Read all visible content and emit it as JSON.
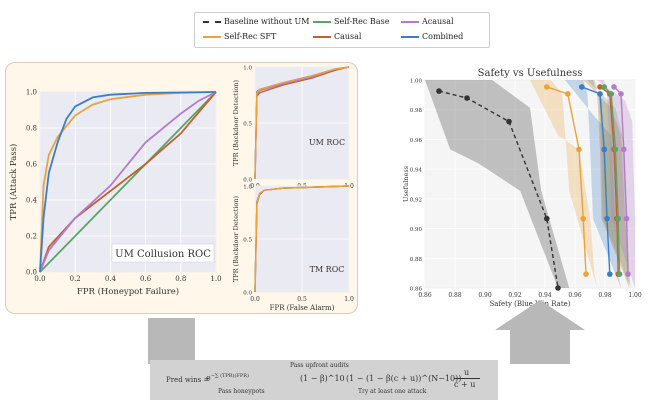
{
  "legend": {
    "items": [
      {
        "label": "Baseline without UM",
        "color": "#333333",
        "dash": true
      },
      {
        "label": "Self-Rec SFT",
        "color": "#e8a33a",
        "dash": false
      },
      {
        "label": "Self-Rec Base",
        "color": "#59a36a",
        "dash": false
      },
      {
        "label": "Causal",
        "color": "#c0622b",
        "dash": false
      },
      {
        "label": "Acausal",
        "color": "#b57bc9",
        "dash": false
      },
      {
        "label": "Combined",
        "color": "#3d7cc4",
        "dash": false
      }
    ]
  },
  "formula": {
    "lhs": "Pred wins =",
    "pass_upfront": "Pass upfront audits",
    "term2": "(1 − β)^10",
    "pass_honeypots": "Pass honeypots",
    "term3": "(1 − (1 − β(c + u))^(N−10))",
    "try_attack": "Try at least one attack",
    "frac_num": "u",
    "frac_den": "c + u"
  },
  "chart_data": [
    {
      "type": "line",
      "title": "UM Collusion ROC",
      "xlabel": "FPR (Honeypot Failure)",
      "ylabel": "TPR (Attack Pass)",
      "xlim": [
        0,
        1
      ],
      "ylim": [
        0,
        1
      ],
      "xticks": [
        "0.0",
        "0.2",
        "0.4",
        "0.6",
        "0.8",
        "1.0"
      ],
      "yticks": [
        "0.0",
        "0.2",
        "0.4",
        "0.6",
        "0.8",
        "1.0"
      ],
      "grid": true,
      "series": [
        {
          "name": "Self-Rec Base",
          "color": "#59a36a",
          "x": [
            0,
            1
          ],
          "y": [
            0,
            1
          ]
        },
        {
          "name": "Causal",
          "color": "#c0622b",
          "x": [
            0,
            0.05,
            0.2,
            0.4,
            0.6,
            0.8,
            1.0
          ],
          "y": [
            0,
            0.14,
            0.3,
            0.45,
            0.6,
            0.77,
            1.0
          ]
        },
        {
          "name": "Acausal",
          "color": "#b57bc9",
          "x": [
            0,
            0.05,
            0.2,
            0.4,
            0.6,
            0.8,
            0.9,
            1.0
          ],
          "y": [
            0,
            0.12,
            0.3,
            0.48,
            0.72,
            0.88,
            0.95,
            1.0
          ]
        },
        {
          "name": "Self-Rec SFT",
          "color": "#e8a33a",
          "x": [
            0,
            0.02,
            0.05,
            0.1,
            0.2,
            0.3,
            0.4,
            0.6,
            0.8,
            1.0
          ],
          "y": [
            0,
            0.48,
            0.65,
            0.75,
            0.87,
            0.93,
            0.96,
            0.985,
            0.995,
            1.0
          ]
        },
        {
          "name": "Combined",
          "color": "#3d7cc4",
          "x": [
            0,
            0.02,
            0.05,
            0.1,
            0.15,
            0.2,
            0.3,
            0.4,
            0.6,
            1.0
          ],
          "y": [
            0,
            0.3,
            0.55,
            0.72,
            0.85,
            0.92,
            0.97,
            0.985,
            0.995,
            1.0
          ]
        }
      ]
    },
    {
      "type": "line",
      "title": "UM ROC",
      "xlabel": "",
      "ylabel": "TPR (Backdoor Detection)",
      "xlim": [
        0,
        1
      ],
      "ylim": [
        0,
        1
      ],
      "xticks": [
        "0.0",
        "0.5",
        "1.0"
      ],
      "yticks": [
        "0.0",
        "0.5",
        "1.0"
      ],
      "grid": true,
      "series": [
        {
          "name": "Combined",
          "color": "#3d7cc4",
          "x": [
            0,
            0.02,
            0.05,
            0.3,
            0.6,
            0.85,
            1.0
          ],
          "y": [
            0,
            0.78,
            0.8,
            0.86,
            0.92,
            0.98,
            1.0
          ]
        },
        {
          "name": "Causal",
          "color": "#c0622b",
          "x": [
            0,
            0.02,
            0.05,
            0.3,
            0.6,
            0.85,
            1.0
          ],
          "y": [
            0,
            0.74,
            0.77,
            0.84,
            0.9,
            0.97,
            1.0
          ]
        },
        {
          "name": "Acausal",
          "color": "#b57bc9",
          "x": [
            0,
            0.02,
            0.05,
            0.3,
            0.6,
            0.85,
            1.0
          ],
          "y": [
            0,
            0.76,
            0.79,
            0.85,
            0.91,
            0.98,
            1.0
          ]
        },
        {
          "name": "Self-Rec SFT",
          "color": "#e8a33a",
          "x": [
            0,
            0.02,
            0.05,
            0.3,
            0.6,
            0.85,
            1.0
          ],
          "y": [
            0,
            0.77,
            0.8,
            0.86,
            0.92,
            0.98,
            1.0
          ]
        }
      ]
    },
    {
      "type": "line",
      "title": "TM ROC",
      "xlabel": "FPR (False Alarm)",
      "ylabel": "TPR (Backdoor Detection)",
      "xlim": [
        0,
        1
      ],
      "ylim": [
        0,
        1
      ],
      "xticks": [
        "0.0",
        "0.5",
        "1.0"
      ],
      "yticks": [
        "0.0",
        "0.5",
        "1.0"
      ],
      "grid": true,
      "series": [
        {
          "name": "Combined",
          "color": "#3d7cc4",
          "x": [
            0,
            0.02,
            0.05,
            0.1,
            0.3,
            1.0
          ],
          "y": [
            0,
            0.85,
            0.93,
            0.96,
            0.98,
            1.0
          ]
        },
        {
          "name": "Causal",
          "color": "#c0622b",
          "x": [
            0,
            0.02,
            0.05,
            0.1,
            0.3,
            1.0
          ],
          "y": [
            0,
            0.83,
            0.92,
            0.96,
            0.98,
            1.0
          ]
        },
        {
          "name": "Self-Rec SFT",
          "color": "#e8a33a",
          "x": [
            0,
            0.02,
            0.05,
            0.1,
            0.3,
            1.0
          ],
          "y": [
            0,
            0.84,
            0.93,
            0.96,
            0.98,
            1.0
          ]
        }
      ]
    },
    {
      "type": "line",
      "title": "Safety vs Usefulness",
      "xlabel": "Safety (Blue Win Rate)",
      "ylabel": "Usefulness",
      "xlim": [
        0.85,
        1.0
      ],
      "ylim": [
        0.85,
        1.0
      ],
      "xticks": [
        "0.86",
        "0.88",
        "0.90",
        "0.92",
        "0.94",
        "0.96",
        "0.98",
        "1.00"
      ],
      "yticks": [
        "0.86",
        "0.88",
        "0.90",
        "0.92",
        "0.94",
        "0.96",
        "0.98",
        "1.00"
      ],
      "grid": true,
      "series": [
        {
          "name": "Baseline without UM",
          "color": "#333333",
          "dash": true,
          "x": [
            0.86,
            0.88,
            0.91,
            0.937,
            0.945
          ],
          "y": [
            0.992,
            0.987,
            0.97,
            0.9,
            0.85
          ],
          "band_low": [
            0.95,
            0.94,
            0.92,
            0.85,
            0.85
          ],
          "band_high": [
            1.0,
            1.0,
            1.0,
            0.98,
            0.92
          ]
        },
        {
          "name": "Self-Rec SFT",
          "color": "#e8a33a",
          "x": [
            0.937,
            0.952,
            0.96,
            0.963,
            0.965
          ],
          "y": [
            0.995,
            0.99,
            0.95,
            0.9,
            0.86
          ],
          "band_low": [
            0.96,
            0.95,
            0.9,
            0.86,
            0.85
          ],
          "band_high": [
            1.0,
            1.0,
            0.99,
            0.95,
            0.92
          ]
        },
        {
          "name": "Combined",
          "color": "#3d7cc4",
          "x": [
            0.962,
            0.975,
            0.978,
            0.98,
            0.982
          ],
          "y": [
            0.995,
            0.99,
            0.95,
            0.9,
            0.86
          ],
          "band_low": [
            0.975,
            0.96,
            0.9,
            0.86,
            0.85
          ],
          "band_high": [
            1.0,
            1.0,
            0.99,
            0.95,
            0.9
          ]
        },
        {
          "name": "Causal",
          "color": "#c0622b",
          "x": [
            0.975,
            0.982,
            0.985,
            0.987,
            0.988
          ],
          "y": [
            0.995,
            0.99,
            0.95,
            0.9,
            0.86
          ],
          "band_low": [
            0.98,
            0.96,
            0.9,
            0.86,
            0.85
          ],
          "band_high": [
            1.0,
            1.0,
            0.99,
            0.95,
            0.9
          ]
        },
        {
          "name": "Self-Rec Base",
          "color": "#59a36a",
          "x": [
            0.978,
            0.983,
            0.986,
            0.988,
            0.989
          ],
          "y": [
            0.995,
            0.99,
            0.95,
            0.9,
            0.86
          ],
          "band_low": [
            0.98,
            0.96,
            0.9,
            0.86,
            0.85
          ],
          "band_high": [
            1.0,
            1.0,
            0.99,
            0.95,
            0.9
          ]
        },
        {
          "name": "Acausal",
          "color": "#b57bc9",
          "x": [
            0.985,
            0.99,
            0.992,
            0.994,
            0.995
          ],
          "y": [
            0.995,
            0.99,
            0.95,
            0.9,
            0.86
          ],
          "band_low": [
            0.985,
            0.97,
            0.9,
            0.86,
            0.85
          ],
          "band_high": [
            1.0,
            1.0,
            0.99,
            0.95,
            0.9
          ]
        }
      ]
    }
  ]
}
